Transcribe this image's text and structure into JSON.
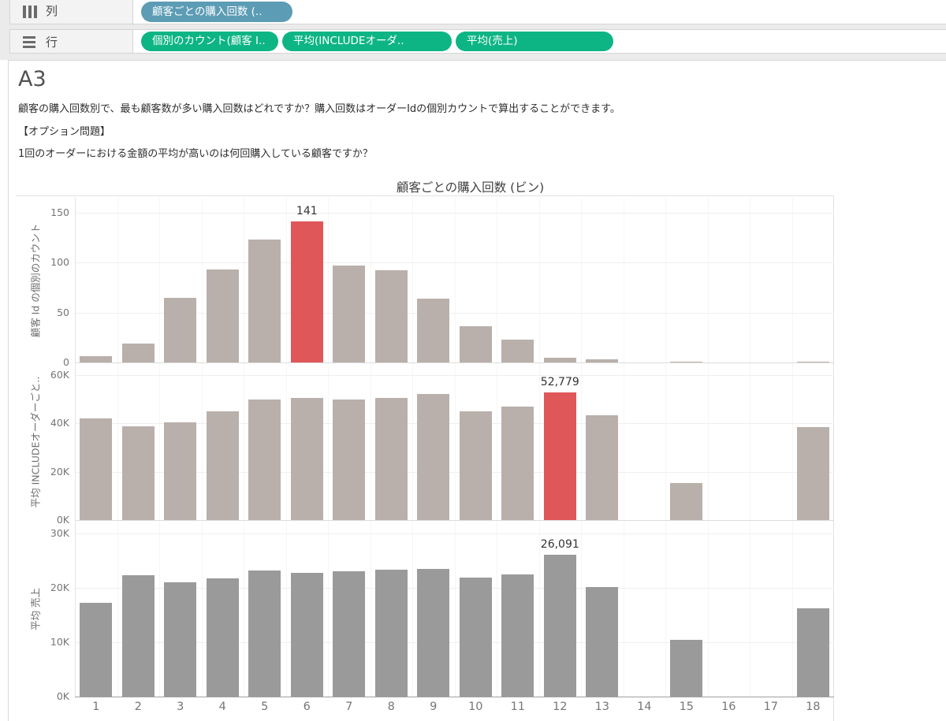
{
  "shelves": {
    "columns": {
      "label": "列",
      "pills": [
        {
          "text": "顧客ごとの購入回数 (..",
          "type": "dimension"
        }
      ]
    },
    "rows": {
      "label": "行",
      "pills": [
        {
          "text": "個別のカウント(顧客 I..",
          "type": "measure"
        },
        {
          "text": "平均(INCLUDEオーダ..",
          "type": "measure"
        },
        {
          "text": "平均(売上)",
          "type": "measure"
        }
      ]
    }
  },
  "worksheet": {
    "title": "A3",
    "description": [
      "顧客の購入回数別で、最も顧客数が多い購入回数はどれですか？購入回数はオーダーIdの個別カウントで算出することができます。",
      "【オプション問題】",
      "1回のオーダーにおける金額の平均が高いのは何回購入している顧客ですか？"
    ]
  },
  "chart_data": {
    "type": "bar",
    "title": "顧客ごとの購入回数 (ビン)",
    "categories": [
      "1",
      "2",
      "3",
      "4",
      "5",
      "6",
      "7",
      "8",
      "9",
      "10",
      "11",
      "12",
      "13",
      "14",
      "15",
      "16",
      "17",
      "18"
    ],
    "xlabel": "",
    "legend": "none",
    "panels": [
      {
        "ylabel": "顧客 Id の個別のカウント",
        "ylim": [
          0,
          165
        ],
        "ticks": [
          {
            "value": 0,
            "label": "0"
          },
          {
            "value": 50,
            "label": "50"
          },
          {
            "value": 100,
            "label": "100"
          },
          {
            "value": 150,
            "label": "150"
          }
        ],
        "values": [
          6,
          19,
          65,
          93,
          123,
          141,
          97,
          92,
          64,
          36,
          23,
          5,
          3,
          0,
          1,
          0,
          0,
          1
        ],
        "highlight_index": 5,
        "annotation": {
          "index": 5,
          "text": "141"
        },
        "bar_color_key": "bar_default"
      },
      {
        "ylabel": "平均 INCLUDEオーダーごと..",
        "ylim": [
          0,
          64900
        ],
        "ticks": [
          {
            "value": 0,
            "label": "0K"
          },
          {
            "value": 20000,
            "label": "20K"
          },
          {
            "value": 40000,
            "label": "40K"
          },
          {
            "value": 60000,
            "label": "60K"
          }
        ],
        "values": [
          42000,
          38700,
          40600,
          45000,
          50000,
          50400,
          50000,
          50400,
          52100,
          45000,
          47100,
          52779,
          43400,
          0,
          15300,
          0,
          0,
          38400
        ],
        "highlight_index": 11,
        "annotation": {
          "index": 11,
          "text": "52,779"
        },
        "bar_color_key": "bar_default"
      },
      {
        "ylabel": "平均 売上",
        "ylim": [
          0,
          32200
        ],
        "ticks": [
          {
            "value": 0,
            "label": "0K"
          },
          {
            "value": 10000,
            "label": "10K"
          },
          {
            "value": 20000,
            "label": "20K"
          },
          {
            "value": 30000,
            "label": "30K"
          }
        ],
        "values": [
          17300,
          22400,
          21100,
          21700,
          23200,
          22800,
          23000,
          23300,
          23500,
          21900,
          22500,
          26091,
          20200,
          0,
          10500,
          0,
          0,
          16200
        ],
        "highlight_index": null,
        "annotation": {
          "index": 11,
          "text": "26,091"
        },
        "bar_color_key": "bar_gray"
      }
    ]
  },
  "colors": {
    "bar_default": "#b9b0ab",
    "bar_highlight": "#e05759",
    "bar_gray": "#9a9a9a",
    "pill_measure": "#0eb584",
    "pill_dimension": "#5c9cb5"
  }
}
